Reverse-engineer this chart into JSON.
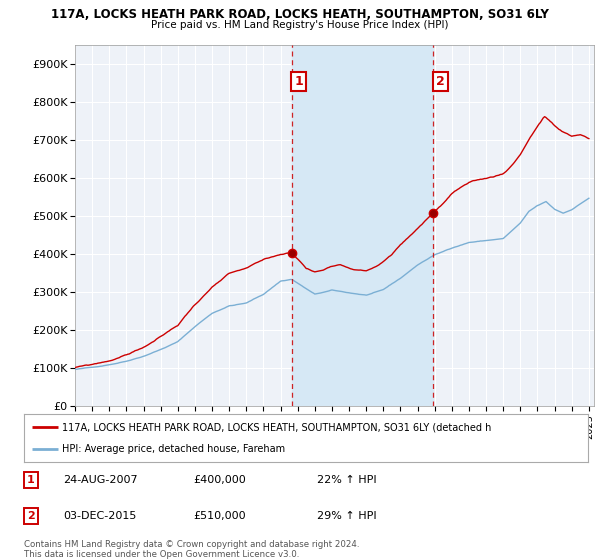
{
  "title_line1": "117A, LOCKS HEATH PARK ROAD, LOCKS HEATH, SOUTHAMPTON, SO31 6LY",
  "title_line2": "Price paid vs. HM Land Registry's House Price Index (HPI)",
  "ylabel_ticks": [
    "£0",
    "£100K",
    "£200K",
    "£300K",
    "£400K",
    "£500K",
    "£600K",
    "£700K",
    "£800K",
    "£900K"
  ],
  "ytick_vals": [
    0,
    100000,
    200000,
    300000,
    400000,
    500000,
    600000,
    700000,
    800000,
    900000
  ],
  "ylim": [
    0,
    950000
  ],
  "xlim_start": 1995.0,
  "xlim_end": 2025.3,
  "transaction1": {
    "date_num": 2007.648,
    "price": 400000,
    "label": "1"
  },
  "transaction2": {
    "date_num": 2015.921,
    "price": 510000,
    "label": "2"
  },
  "red_color": "#cc0000",
  "blue_color": "#7bafd4",
  "shade_color": "#d6e8f5",
  "dashed_color": "#cc0000",
  "legend_entry1": "117A, LOCKS HEATH PARK ROAD, LOCKS HEATH, SOUTHAMPTON, SO31 6LY (detached h",
  "legend_entry2": "HPI: Average price, detached house, Fareham",
  "footnote": "Contains HM Land Registry data © Crown copyright and database right 2024.\nThis data is licensed under the Open Government Licence v3.0.",
  "table_rows": [
    {
      "num": "1",
      "date": "24-AUG-2007",
      "price": "£400,000",
      "hpi": "22% ↑ HPI"
    },
    {
      "num": "2",
      "date": "03-DEC-2015",
      "price": "£510,000",
      "hpi": "29% ↑ HPI"
    }
  ],
  "bg_color": "#ffffff",
  "plot_bg_color": "#eef2f8",
  "grid_color": "#ffffff"
}
